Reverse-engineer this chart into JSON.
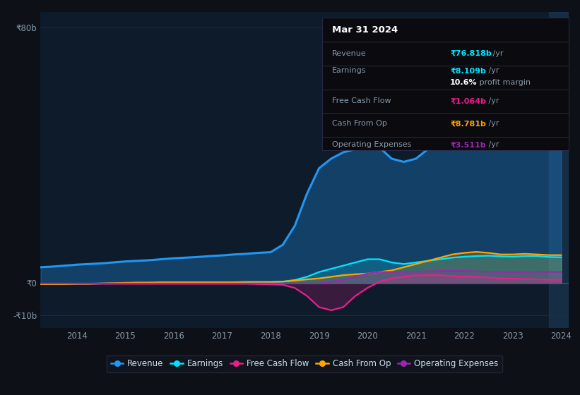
{
  "bg_color": "#0d1117",
  "plot_bg_color": "#0d1b2a",
  "years": [
    2013.25,
    2013.5,
    2013.75,
    2014.0,
    2014.25,
    2014.5,
    2014.75,
    2015.0,
    2015.25,
    2015.5,
    2015.75,
    2016.0,
    2016.25,
    2016.5,
    2016.75,
    2017.0,
    2017.25,
    2017.5,
    2017.75,
    2018.0,
    2018.25,
    2018.5,
    2018.75,
    2019.0,
    2019.25,
    2019.5,
    2019.75,
    2020.0,
    2020.25,
    2020.5,
    2020.75,
    2021.0,
    2021.25,
    2021.5,
    2021.75,
    2022.0,
    2022.25,
    2022.5,
    2022.75,
    2023.0,
    2023.25,
    2023.5,
    2023.75,
    2024.0
  ],
  "revenue": [
    5.0,
    5.2,
    5.5,
    5.8,
    6.0,
    6.2,
    6.5,
    6.8,
    7.0,
    7.2,
    7.5,
    7.8,
    8.0,
    8.2,
    8.5,
    8.7,
    9.0,
    9.2,
    9.5,
    9.7,
    12,
    18,
    28,
    36,
    39,
    41,
    42,
    43,
    42.5,
    39,
    38,
    39,
    42,
    48,
    55,
    62,
    66,
    68,
    70,
    72,
    75,
    78,
    75,
    76.818
  ],
  "earnings": [
    -0.3,
    -0.3,
    -0.25,
    -0.2,
    -0.15,
    -0.1,
    -0.05,
    0.0,
    0.05,
    0.1,
    0.1,
    0.1,
    0.15,
    0.15,
    0.2,
    0.2,
    0.25,
    0.3,
    0.3,
    0.3,
    0.5,
    1.0,
    2.0,
    3.5,
    4.5,
    5.5,
    6.5,
    7.5,
    7.5,
    6.5,
    6.0,
    6.5,
    7.0,
    7.5,
    8.0,
    8.3,
    8.5,
    8.6,
    8.4,
    8.3,
    8.5,
    8.5,
    8.2,
    8.109
  ],
  "free_cash_flow": [
    -0.2,
    -0.2,
    -0.2,
    -0.2,
    -0.2,
    -0.2,
    -0.2,
    -0.2,
    -0.2,
    -0.2,
    -0.2,
    -0.2,
    -0.2,
    -0.2,
    -0.2,
    -0.2,
    -0.2,
    -0.2,
    -0.3,
    -0.4,
    -0.5,
    -1.5,
    -4.0,
    -7.5,
    -8.5,
    -7.5,
    -4.0,
    -1.5,
    0.5,
    1.5,
    2.0,
    2.5,
    2.5,
    2.5,
    2.2,
    2.0,
    2.0,
    1.8,
    1.5,
    1.4,
    1.3,
    1.2,
    1.1,
    1.064
  ],
  "cash_from_op": [
    -0.3,
    -0.3,
    -0.3,
    -0.2,
    -0.2,
    -0.1,
    0.0,
    0.1,
    0.2,
    0.2,
    0.3,
    0.3,
    0.3,
    0.3,
    0.3,
    0.3,
    0.3,
    0.4,
    0.4,
    0.4,
    0.5,
    0.8,
    1.2,
    1.5,
    2.0,
    2.5,
    2.8,
    3.0,
    3.5,
    4.0,
    5.0,
    6.0,
    7.0,
    8.0,
    9.0,
    9.5,
    9.8,
    9.5,
    9.0,
    9.0,
    9.2,
    9.0,
    8.8,
    8.781
  ],
  "operating_expenses": [
    -0.1,
    -0.1,
    -0.1,
    -0.1,
    -0.1,
    -0.1,
    -0.1,
    -0.1,
    -0.1,
    -0.1,
    -0.1,
    -0.1,
    -0.1,
    -0.1,
    -0.1,
    -0.1,
    -0.1,
    -0.1,
    -0.1,
    -0.1,
    -0.1,
    -0.1,
    -0.1,
    -0.1,
    0.5,
    1.0,
    2.0,
    3.0,
    3.5,
    3.5,
    3.5,
    3.6,
    3.7,
    3.8,
    3.8,
    3.8,
    3.7,
    3.6,
    3.5,
    3.5,
    3.5,
    3.6,
    3.5,
    3.511
  ],
  "revenue_color": "#2196f3",
  "earnings_color": "#00e5ff",
  "fcf_color": "#e91e8c",
  "cash_op_color": "#ffa500",
  "op_exp_color": "#9c27b0",
  "axis_label_color": "#8899aa",
  "grid_color": "#1e3040",
  "zero_line_color": "#506070",
  "highlight_color": "#1a3550",
  "ylim": [
    -14,
    85
  ],
  "yticks": [
    -10,
    0,
    80
  ],
  "xtick_years": [
    2014,
    2015,
    2016,
    2017,
    2018,
    2019,
    2020,
    2021,
    2022,
    2023,
    2024
  ],
  "info_rows": [
    {
      "label": "Revenue",
      "value": "₹76.818b",
      "suffix": " /yr",
      "val_color": "#00e5ff"
    },
    {
      "label": "Earnings",
      "value": "₹8.109b",
      "suffix": " /yr",
      "val_color": "#00e5ff"
    },
    {
      "label": "",
      "value": "10.6%",
      "suffix": " profit margin",
      "val_color": "#ffffff"
    },
    {
      "label": "Free Cash Flow",
      "value": "₹1.064b",
      "suffix": " /yr",
      "val_color": "#e91e8c"
    },
    {
      "label": "Cash From Op",
      "value": "₹8.781b",
      "suffix": " /yr",
      "val_color": "#ffa500"
    },
    {
      "label": "Operating Expenses",
      "value": "₹3.511b",
      "suffix": " /yr",
      "val_color": "#9c27b0"
    }
  ],
  "legend_labels": [
    "Revenue",
    "Earnings",
    "Free Cash Flow",
    "Cash From Op",
    "Operating Expenses"
  ],
  "legend_colors": [
    "#2196f3",
    "#00e5ff",
    "#e91e8c",
    "#ffa500",
    "#9c27b0"
  ]
}
